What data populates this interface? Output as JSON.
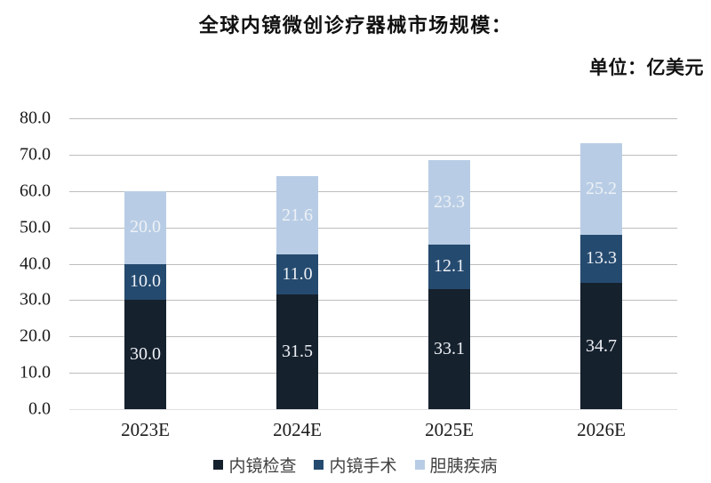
{
  "title": "全球内镜微创诊疗器械市场规模：",
  "unit_label": "单位：亿美元",
  "chart_data": {
    "type": "bar",
    "stacked": true,
    "title": "全球内镜微创诊疗器械市场规模：",
    "unit": "亿美元",
    "categories": [
      "2023E",
      "2024E",
      "2025E",
      "2026E"
    ],
    "series": [
      {
        "name": "内镜检查",
        "color": "#16212e",
        "values": [
          30.0,
          31.5,
          33.1,
          34.7
        ]
      },
      {
        "name": "内镜手术",
        "color": "#254a6f",
        "values": [
          10.0,
          11.0,
          12.1,
          13.3
        ]
      },
      {
        "name": "胆胰疾病",
        "color": "#b8cde5",
        "values": [
          20.0,
          21.6,
          23.3,
          25.2
        ]
      }
    ],
    "totals": [
      60.0,
      64.1,
      68.5,
      73.2
    ],
    "xlabel": "",
    "ylabel": "",
    "ylim": [
      0,
      80
    ],
    "yticks": [
      80,
      70,
      60,
      50,
      40,
      30,
      20,
      10,
      0
    ],
    "grid": true,
    "legend_position": "bottom",
    "value_labels_shown": true
  },
  "colors": {
    "gridline": "#bdbdbd",
    "baseline": "#e0e0e0",
    "axis_text": "#1a1a1a",
    "legend_text": "#404040",
    "bar_value_text": "#eef1f6"
  }
}
